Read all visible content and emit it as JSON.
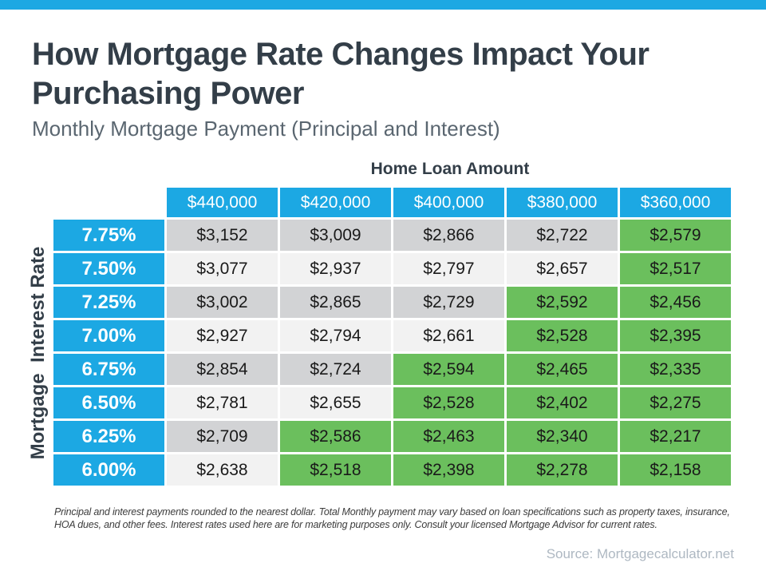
{
  "page": {
    "title_line1": "How Mortgage Rate Changes Impact Your",
    "title_line2": "Purchasing Power",
    "subtitle": "Monthly Mortgage Payment (Principal and Interest)",
    "footnote": "Principal and interest payments rounded to the nearest dollar. Total Monthly payment may vary based on loan specifications such as property taxes, insurance, HOA dues, and other fees. Interest rates used here are for marketing purposes only. Consult your licensed Mortgage Advisor for current rates.",
    "source": "Source: Mortgagecalculator.net"
  },
  "colors": {
    "accent_blue": "#1CA8E3",
    "highlight_green": "#6BBF5D",
    "row_gray": "#D2D3D5",
    "row_light": "#F2F2F2",
    "title_dark": "#333E48",
    "subtitle_gray": "#5A6670",
    "source_gray": "#AEB8C2"
  },
  "chart_data": {
    "type": "table",
    "title": "How Mortgage Rate Changes Impact Your Purchasing Power",
    "subtitle": "Monthly Mortgage Payment (Principal and Interest)",
    "column_group_label": "Home Loan Amount",
    "row_group_label": "Mortgage  Interest Rate",
    "columns": [
      "$440,000",
      "$420,000",
      "$400,000",
      "$380,000",
      "$360,000"
    ],
    "rows": [
      {
        "rate": "7.75%",
        "values": [
          "$3,152",
          "$3,009",
          "$2,866",
          "$2,722",
          "$2,579"
        ],
        "green": [
          false,
          false,
          false,
          false,
          true
        ]
      },
      {
        "rate": "7.50%",
        "values": [
          "$3,077",
          "$2,937",
          "$2,797",
          "$2,657",
          "$2,517"
        ],
        "green": [
          false,
          false,
          false,
          false,
          true
        ]
      },
      {
        "rate": "7.25%",
        "values": [
          "$3,002",
          "$2,865",
          "$2,729",
          "$2,592",
          "$2,456"
        ],
        "green": [
          false,
          false,
          false,
          true,
          true
        ]
      },
      {
        "rate": "7.00%",
        "values": [
          "$2,927",
          "$2,794",
          "$2,661",
          "$2,528",
          "$2,395"
        ],
        "green": [
          false,
          false,
          false,
          true,
          true
        ]
      },
      {
        "rate": "6.75%",
        "values": [
          "$2,854",
          "$2,724",
          "$2,594",
          "$2,465",
          "$2,335"
        ],
        "green": [
          false,
          false,
          true,
          true,
          true
        ]
      },
      {
        "rate": "6.50%",
        "values": [
          "$2,781",
          "$2,655",
          "$2,528",
          "$2,402",
          "$2,275"
        ],
        "green": [
          false,
          false,
          true,
          true,
          true
        ]
      },
      {
        "rate": "6.25%",
        "values": [
          "$2,709",
          "$2,586",
          "$2,463",
          "$2,340",
          "$2,217"
        ],
        "green": [
          false,
          true,
          true,
          true,
          true
        ]
      },
      {
        "rate": "6.00%",
        "values": [
          "$2,638",
          "$2,518",
          "$2,398",
          "$2,278",
          "$2,158"
        ],
        "green": [
          false,
          true,
          true,
          true,
          true
        ]
      }
    ]
  }
}
